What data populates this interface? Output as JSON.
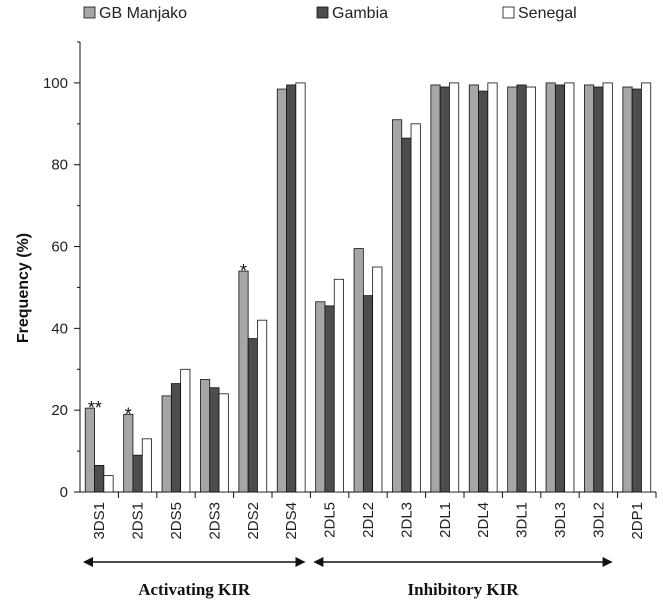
{
  "chart_data": {
    "type": "bar",
    "categories": [
      "3DS1",
      "2DS1",
      "2DS5",
      "2DS3",
      "2DS2",
      "2DS4",
      "2DL5",
      "2DL2",
      "2DL3",
      "2DL1",
      "2DL4",
      "3DL1",
      "3DL3",
      "3DL2",
      "2DP1"
    ],
    "series": [
      {
        "name": "GB Manjako",
        "color": "#a6a6a6",
        "values": [
          20.5,
          19,
          23.5,
          27.5,
          54,
          98.5,
          46.5,
          59.5,
          91,
          99.5,
          99.5,
          99,
          100,
          99.5,
          99
        ]
      },
      {
        "name": "Gambia",
        "color": "#4d4d4d",
        "values": [
          6.5,
          9,
          26.5,
          25.5,
          37.5,
          99.5,
          45.5,
          48,
          86.5,
          99,
          98,
          99.5,
          99.5,
          99,
          98.5
        ]
      },
      {
        "name": "Senegal",
        "color": "#ffffff",
        "values": [
          4,
          13,
          30,
          24,
          42,
          100,
          52,
          55,
          90,
          100,
          100,
          99,
          100,
          100,
          100
        ]
      }
    ],
    "ylabel": "Frequency (%)",
    "ylim": [
      0,
      110
    ],
    "yticks": [
      0,
      20,
      40,
      60,
      80,
      100
    ],
    "legend_position": "top",
    "grid": false,
    "annotations": [
      {
        "category": "3DS1",
        "text": "**"
      },
      {
        "category": "2DS1",
        "text": "*"
      },
      {
        "category": "2DS2",
        "text": "*"
      }
    ],
    "groups": [
      {
        "label": "Activating KIR",
        "from": "3DS1",
        "to": "2DS4"
      },
      {
        "label": "Inhibitory KIR",
        "from": "2DL5",
        "to": "3DL2"
      }
    ]
  }
}
